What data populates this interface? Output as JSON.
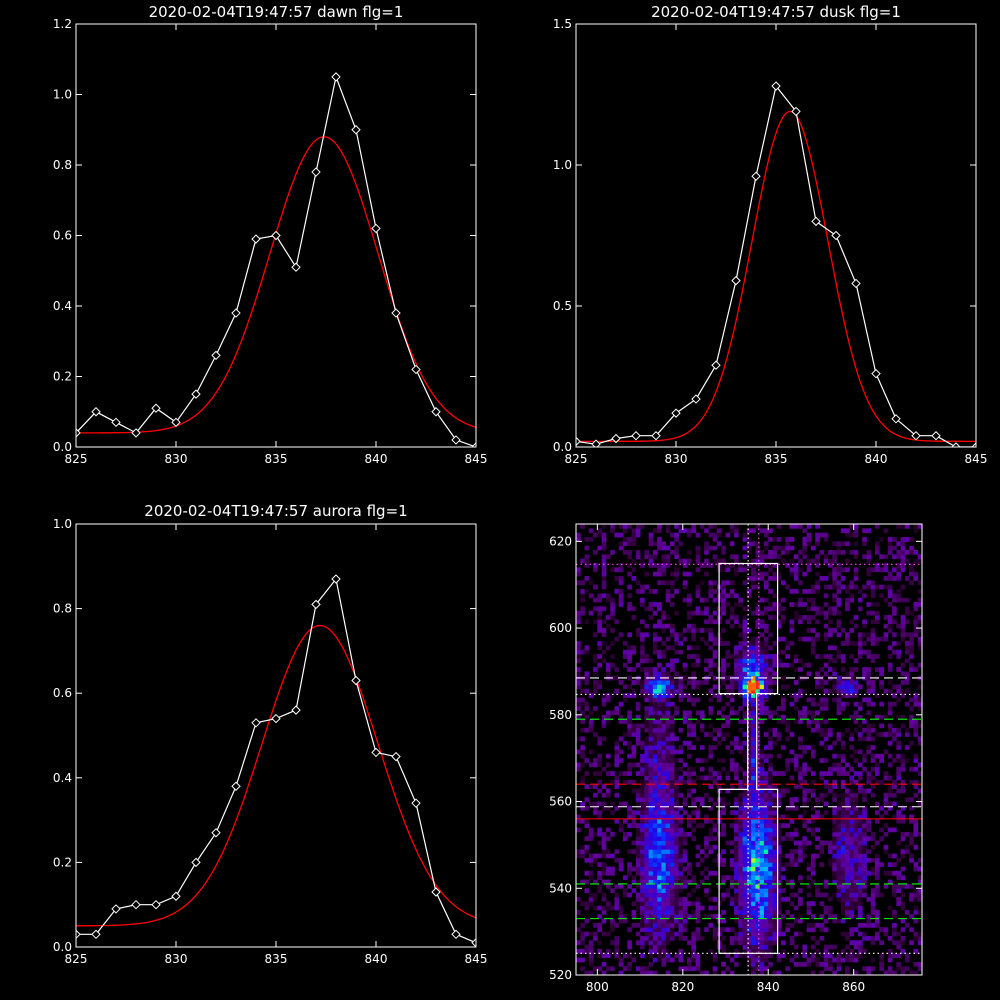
{
  "chart_data": [
    {
      "type": "line",
      "title": "2020-02-04T19:47:57 dawn flg=1",
      "xlim": [
        825,
        845
      ],
      "ylim": [
        0,
        1.2
      ],
      "xticks": [
        825,
        830,
        835,
        840,
        845
      ],
      "yticks": [
        0.0,
        0.2,
        0.4,
        0.6,
        0.8,
        1.0,
        1.2
      ],
      "colors": {
        "data": "#ffffff",
        "fit": "#ff0000"
      },
      "series": [
        {
          "kind": "data",
          "marker": "diamond",
          "x": [
            825,
            826,
            827,
            828,
            829,
            830,
            831,
            832,
            833,
            834,
            835,
            836,
            837,
            838,
            839,
            840,
            841,
            842,
            843,
            844,
            845
          ],
          "y": [
            0.04,
            0.1,
            0.07,
            0.04,
            0.11,
            0.07,
            0.15,
            0.26,
            0.38,
            0.59,
            0.6,
            0.51,
            0.78,
            1.05,
            0.9,
            0.62,
            0.38,
            0.22,
            0.1,
            0.02,
            0.0
          ]
        },
        {
          "kind": "fit",
          "gaussian": {
            "amplitude": 0.84,
            "center": 837.4,
            "sigma": 2.7,
            "offset": 0.04
          }
        }
      ]
    },
    {
      "type": "line",
      "title": "2020-02-04T19:47:57 dusk flg=1",
      "xlim": [
        825,
        845
      ],
      "ylim": [
        0,
        1.5
      ],
      "xticks": [
        825,
        830,
        835,
        840,
        845
      ],
      "yticks": [
        0.0,
        0.5,
        1.0,
        1.5
      ],
      "colors": {
        "data": "#ffffff",
        "fit": "#ff0000"
      },
      "series": [
        {
          "kind": "data",
          "marker": "diamond",
          "x": [
            825,
            826,
            827,
            828,
            829,
            830,
            831,
            832,
            833,
            834,
            835,
            836,
            837,
            838,
            839,
            840,
            841,
            842,
            843,
            844,
            845
          ],
          "y": [
            0.02,
            0.01,
            0.03,
            0.04,
            0.04,
            0.12,
            0.17,
            0.29,
            0.59,
            0.96,
            1.28,
            1.19,
            0.8,
            0.75,
            0.58,
            0.26,
            0.1,
            0.04,
            0.04,
            0.0,
            0.0
          ]
        },
        {
          "kind": "fit",
          "gaussian": {
            "amplitude": 1.17,
            "center": 835.7,
            "sigma": 1.9,
            "offset": 0.02
          }
        }
      ]
    },
    {
      "type": "line",
      "title": "2020-02-04T19:47:57 aurora flg=1",
      "xlim": [
        825,
        845
      ],
      "ylim": [
        0,
        1.0
      ],
      "xticks": [
        825,
        830,
        835,
        840,
        845
      ],
      "yticks": [
        0.0,
        0.2,
        0.4,
        0.6,
        0.8,
        1.0
      ],
      "colors": {
        "data": "#ffffff",
        "fit": "#ff0000"
      },
      "series": [
        {
          "kind": "data",
          "marker": "diamond",
          "x": [
            825,
            826,
            827,
            828,
            829,
            830,
            831,
            832,
            833,
            834,
            835,
            836,
            837,
            838,
            839,
            840,
            841,
            842,
            843,
            844,
            845
          ],
          "y": [
            0.03,
            0.03,
            0.09,
            0.1,
            0.1,
            0.12,
            0.2,
            0.27,
            0.38,
            0.53,
            0.54,
            0.56,
            0.81,
            0.87,
            0.63,
            0.46,
            0.45,
            0.34,
            0.13,
            0.03,
            0.01
          ]
        },
        {
          "kind": "fit",
          "gaussian": {
            "amplitude": 0.71,
            "center": 837.2,
            "sigma": 2.9,
            "offset": 0.05
          }
        }
      ]
    },
    {
      "type": "heatmap",
      "title": "",
      "xlim": [
        795,
        876
      ],
      "ylim": [
        520,
        624
      ],
      "xticks": [
        800,
        820,
        840,
        860
      ],
      "yticks": [
        520,
        540,
        560,
        580,
        600,
        620
      ],
      "colors": {
        "background": "#000000",
        "box": "#ffffff",
        "red": "#ff0000",
        "green": "#00ff00",
        "white": "#ffffff",
        "magenta": "#ff44ff"
      },
      "blobs": [
        {
          "x": 814.5,
          "y": 586.5,
          "sx": 1.8,
          "sy": 1.5,
          "amp": 0.65
        },
        {
          "x": 836.5,
          "y": 586.5,
          "sx": 1.6,
          "sy": 1.5,
          "amp": 1.0
        },
        {
          "x": 836.5,
          "y": 591.0,
          "sx": 2.2,
          "sy": 3.0,
          "amp": 0.45
        },
        {
          "x": 858.5,
          "y": 586.5,
          "sx": 1.5,
          "sy": 1.5,
          "amp": 0.4
        },
        {
          "x": 837.5,
          "y": 545.0,
          "sx": 2.6,
          "sy": 11.0,
          "amp": 0.62
        },
        {
          "x": 814.5,
          "y": 546.0,
          "sx": 2.6,
          "sy": 11.0,
          "amp": 0.42
        },
        {
          "x": 859.0,
          "y": 548.0,
          "sx": 2.6,
          "sy": 9.0,
          "amp": 0.2
        },
        {
          "x": 836.5,
          "y": 574.0,
          "sx": 1.0,
          "sy": 9.0,
          "amp": 0.22
        },
        {
          "x": 814.5,
          "y": 568.0,
          "sx": 2.6,
          "sy": 14.0,
          "amp": 0.12
        }
      ],
      "hlines": [
        {
          "y": 588.5,
          "color": "white",
          "style": "dashed"
        },
        {
          "y": 579.0,
          "color": "green",
          "style": "dashed"
        },
        {
          "y": 564.0,
          "color": "red",
          "style": "dashed"
        },
        {
          "y": 558.8,
          "color": "white",
          "style": "dashed"
        },
        {
          "y": 556.0,
          "color": "red",
          "style": "solid"
        },
        {
          "y": 541.0,
          "color": "green",
          "style": "dashed"
        },
        {
          "y": 533.0,
          "color": "green",
          "style": "dashed"
        },
        {
          "y": 614.7,
          "color": "magenta",
          "style": "dotted"
        },
        {
          "y": 584.7,
          "color": "white",
          "style": "dotted"
        },
        {
          "y": 525.0,
          "color": "white",
          "style": "dotted"
        }
      ],
      "vlines": [
        {
          "x": 835.3,
          "color": "white",
          "style": "dotted"
        },
        {
          "x": 837.8,
          "color": "magenta",
          "style": "dotted"
        }
      ],
      "region_outline": [
        [
          828.5,
          525
        ],
        [
          828.5,
          562.8
        ],
        [
          835.2,
          562.8
        ],
        [
          835.2,
          584.9
        ],
        [
          828.5,
          584.9
        ],
        [
          828.5,
          614.9
        ],
        [
          842.2,
          614.9
        ],
        [
          842.2,
          584.9
        ],
        [
          837.3,
          584.9
        ],
        [
          837.3,
          562.8
        ],
        [
          842.2,
          562.8
        ],
        [
          842.2,
          525
        ]
      ],
      "peak_marker": {
        "x": 836.2,
        "y": 586.5,
        "color": "#ff6600"
      }
    }
  ]
}
